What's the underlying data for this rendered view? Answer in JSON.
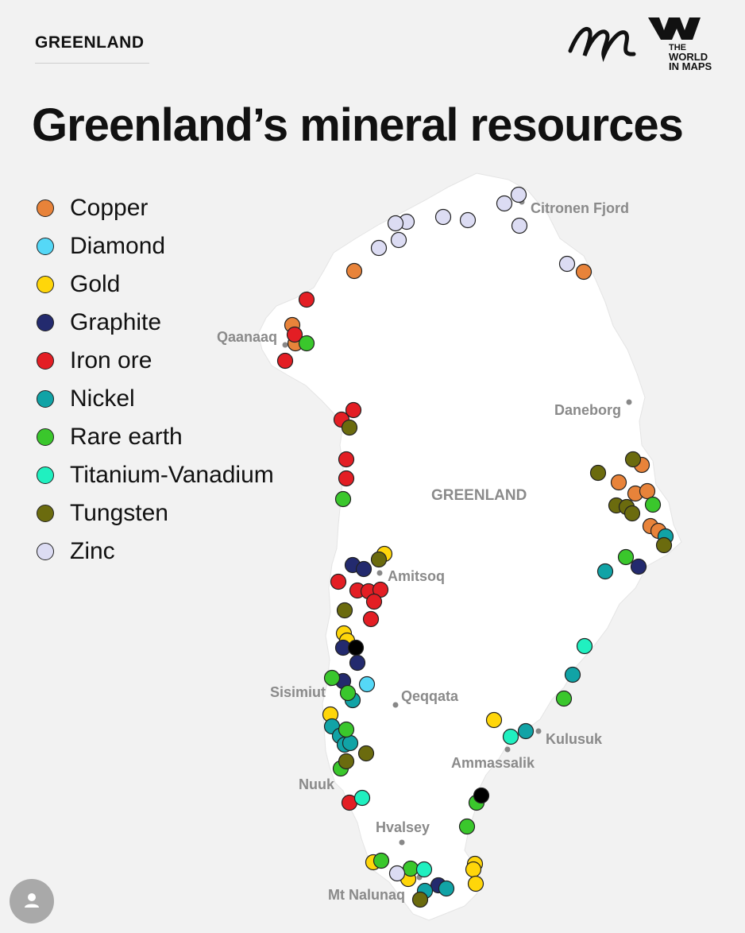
{
  "header": {
    "eyebrow": "GREENLAND",
    "title": "Greenland’s mineral resources",
    "brand_line1": "THE",
    "brand_line2": "WORLD",
    "brand_line3": "IN MAPS"
  },
  "legend": [
    {
      "name": "Copper",
      "color": "#e8833a"
    },
    {
      "name": "Diamond",
      "color": "#55d8f7"
    },
    {
      "name": "Gold",
      "color": "#ffd60a"
    },
    {
      "name": "Graphite",
      "color": "#232a6e"
    },
    {
      "name": "Iron ore",
      "color": "#e31e24"
    },
    {
      "name": "Nickel",
      "color": "#11a3a6"
    },
    {
      "name": "Rare earth",
      "color": "#3ac72c"
    },
    {
      "name": "Titanium-Vanadium",
      "color": "#20f0c0"
    },
    {
      "name": "Tungsten",
      "color": "#6b6b0e"
    },
    {
      "name": "Zinc",
      "color": "#dcdcf3"
    }
  ],
  "map": {
    "country_label": "GREENLAND",
    "places": [
      "Citronen Fjord",
      "Qaanaaq",
      "Daneborg",
      "Amitsoq",
      "Sisimiut",
      "Qeqqata",
      "Kulusuk",
      "Ammassalik",
      "Nuuk",
      "Hvalsey",
      "Mt Nalunaq"
    ]
  },
  "colors": {
    "unknown_site": "#000000",
    "land": "#ffffff",
    "background": "#f2f2f2"
  }
}
